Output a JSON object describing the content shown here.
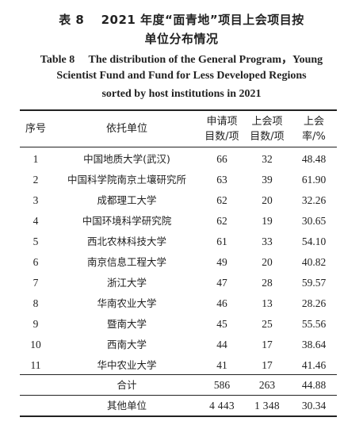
{
  "title": {
    "cn_line1": "表 8　 2021 年度“面青地”项目上会项目按",
    "cn_line2": "单位分布情况",
    "en_line1": "Table 8  The distribution of the General Program，Young",
    "en_line2": "Scientist Fund and Fund for Less Developed Regions",
    "en_line3": "sorted by host institutions in 2021"
  },
  "table": {
    "headers": {
      "seq": "序号",
      "institution": "依托单位",
      "applications_l1": "申请项",
      "applications_l2": "目数/项",
      "funded_l1": "上会项",
      "funded_l2": "目数/项",
      "rate_l1": "上会",
      "rate_l2": "率/%"
    },
    "rows": [
      {
        "seq": "1",
        "institution": "中国地质大学(武汉)",
        "applications": "66",
        "funded": "32",
        "rate": "48.48"
      },
      {
        "seq": "2",
        "institution": "中国科学院南京土壤研究所",
        "applications": "63",
        "funded": "39",
        "rate": "61.90"
      },
      {
        "seq": "3",
        "institution": "成都理工大学",
        "applications": "62",
        "funded": "20",
        "rate": "32.26"
      },
      {
        "seq": "4",
        "institution": "中国环境科学研究院",
        "applications": "62",
        "funded": "19",
        "rate": "30.65"
      },
      {
        "seq": "5",
        "institution": "西北农林科技大学",
        "applications": "61",
        "funded": "33",
        "rate": "54.10"
      },
      {
        "seq": "6",
        "institution": "南京信息工程大学",
        "applications": "49",
        "funded": "20",
        "rate": "40.82"
      },
      {
        "seq": "7",
        "institution": "浙江大学",
        "applications": "47",
        "funded": "28",
        "rate": "59.57"
      },
      {
        "seq": "8",
        "institution": "华南农业大学",
        "applications": "46",
        "funded": "13",
        "rate": "28.26"
      },
      {
        "seq": "9",
        "institution": "暨南大学",
        "applications": "45",
        "funded": "25",
        "rate": "55.56"
      },
      {
        "seq": "10",
        "institution": "西南大学",
        "applications": "44",
        "funded": "17",
        "rate": "38.64"
      },
      {
        "seq": "11",
        "institution": "华中农业大学",
        "applications": "41",
        "funded": "17",
        "rate": "41.46"
      }
    ],
    "total": {
      "label": "合计",
      "applications": "586",
      "funded": "263",
      "rate": "44.88"
    },
    "other": {
      "label": "其他单位",
      "applications": "4 443",
      "funded": "1 348",
      "rate": "30.34"
    }
  }
}
